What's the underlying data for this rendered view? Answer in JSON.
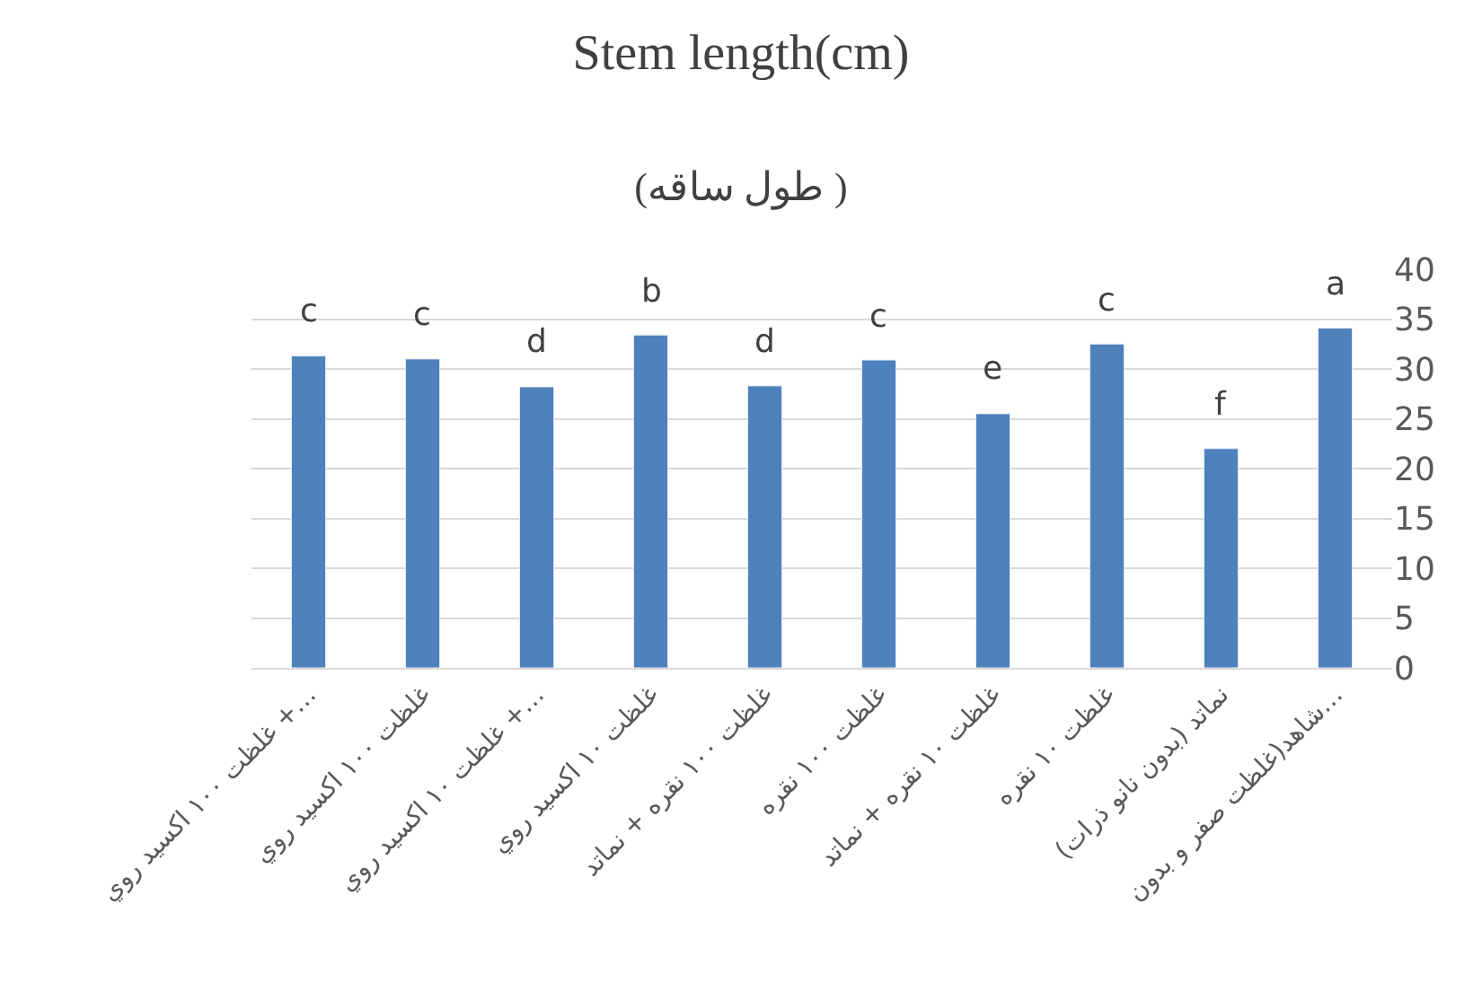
{
  "chart_data": {
    "type": "bar",
    "title": "Stem length(cm)",
    "subtitle": "(طول ساقه )",
    "categories": [
      "غلظت ١٠٠ اكسيد روي +…",
      "غلظت ١٠٠ اكسيد روي",
      "غلظت ١٠ اكسيد روي +…",
      "غلظت ١٠ اكسيد روي",
      "غلظت ١٠٠ نقره + نماتد",
      "غلظت ١٠٠ نقره",
      "غلظت ١٠ نقره + نماتد",
      "غلظت ١٠ نقره",
      "نماتد (بدون نانو ذرات)",
      "شاهد(غلظت صفر و بدون…"
    ],
    "values": [
      31.3,
      31.0,
      28.2,
      33.4,
      28.3,
      30.9,
      25.5,
      32.5,
      22.0,
      34.1
    ],
    "color": "#4f81bd",
    "ylim": [
      0,
      40
    ],
    "yticks": [
      0,
      5,
      10,
      15,
      20,
      25,
      30,
      35,
      40
    ],
    "grid": "y",
    "annotations": [
      {
        "text": "c",
        "x": "غلظت ١٠٠ اكسيد روي +…",
        "y": 31.3
      },
      {
        "text": "c",
        "x": "غلظت ١٠٠ اكسيد روي",
        "y": 31.0
      },
      {
        "text": "d",
        "x": "غلظت ١٠ اكسيد روي +…",
        "y": 28.2
      },
      {
        "text": "b",
        "x": "غلظت ١٠ اكسيد روي",
        "y": 33.4
      },
      {
        "text": "d",
        "x": "غلظت ١٠٠ نقره + نماتد",
        "y": 28.3
      },
      {
        "text": "c",
        "x": "غلظت ١٠٠ نقره",
        "y": 30.9
      },
      {
        "text": "e",
        "x": "غلظت ١٠ نقره + نماتد",
        "y": 25.5
      },
      {
        "text": "c",
        "x": "غلظت ١٠ نقره",
        "y": 32.5
      },
      {
        "text": "f",
        "x": "نماتد (بدون نانو ذرات)",
        "y": 22.0
      },
      {
        "text": "a",
        "x": "شاهد(غلظت صفر و بدون…",
        "y": 34.1
      }
    ]
  }
}
